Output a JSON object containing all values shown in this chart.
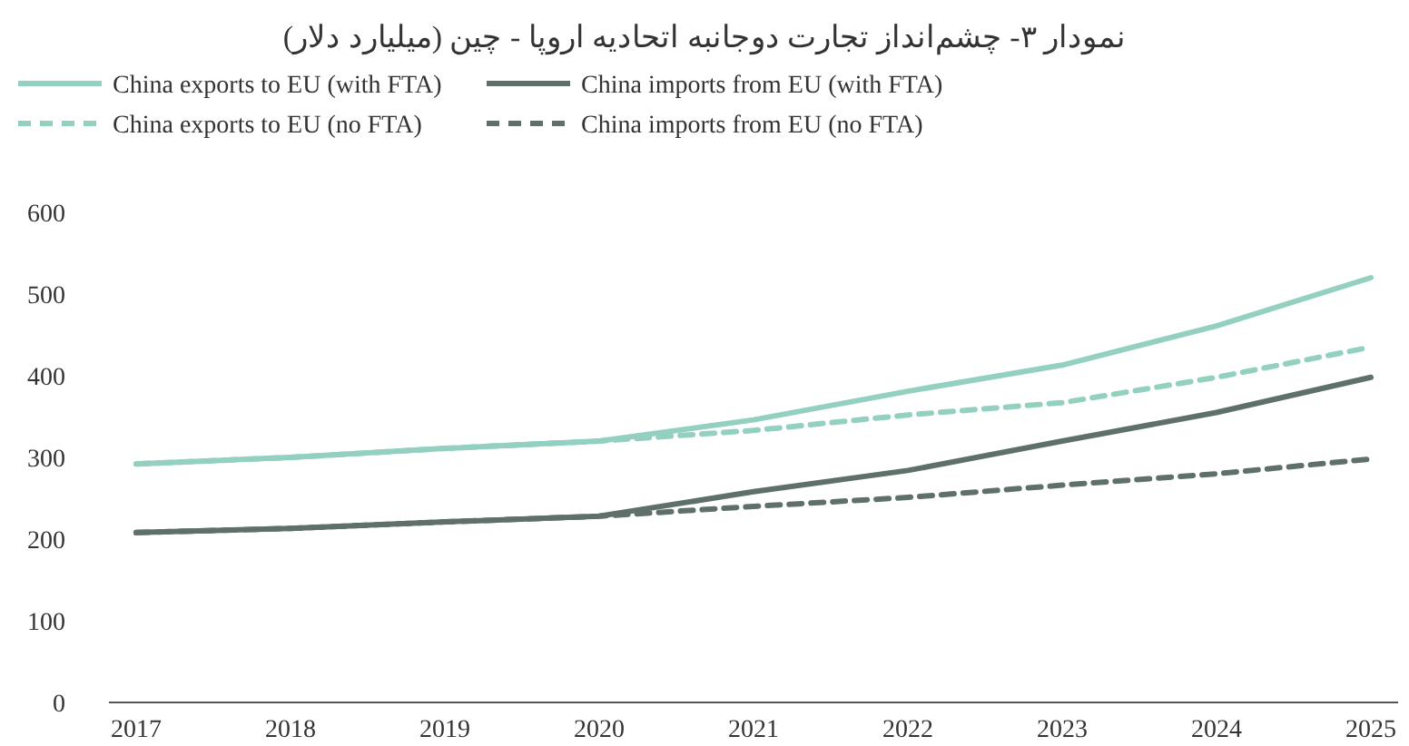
{
  "chart_data": {
    "type": "line",
    "title": "نمودار ۳- چشم‌انداز تجارت دوجانبه اتحادیه اروپا - چین (میلیارد دلار)",
    "categories": [
      "2017",
      "2018",
      "2019",
      "2020",
      "2021",
      "2022",
      "2023",
      "2024",
      "2025"
    ],
    "ylim": [
      0,
      600
    ],
    "yticks": [
      0,
      100,
      200,
      300,
      400,
      500,
      600
    ],
    "grid": false,
    "legend": "top left",
    "series": [
      {
        "name": "China exports to EU (with FTA)",
        "color": "#93d0c0",
        "line_style": "solid",
        "values": [
          292,
          300,
          311,
          320,
          346,
          381,
          413,
          461,
          520
        ]
      },
      {
        "name": "China imports from EU (with FTA)",
        "color": "#5f706b",
        "line_style": "solid",
        "values": [
          208,
          213,
          221,
          228,
          258,
          284,
          320,
          355,
          398
        ]
      },
      {
        "name": "China exports to EU (no FTA)",
        "color": "#93d0c0",
        "line_style": "dashed",
        "values": [
          292,
          300,
          311,
          320,
          333,
          352,
          367,
          398,
          435
        ]
      },
      {
        "name": "China imports from EU (no FTA)",
        "color": "#5f706b",
        "line_style": "dashed",
        "values": [
          208,
          213,
          221,
          228,
          240,
          251,
          266,
          280,
          298
        ]
      }
    ]
  }
}
